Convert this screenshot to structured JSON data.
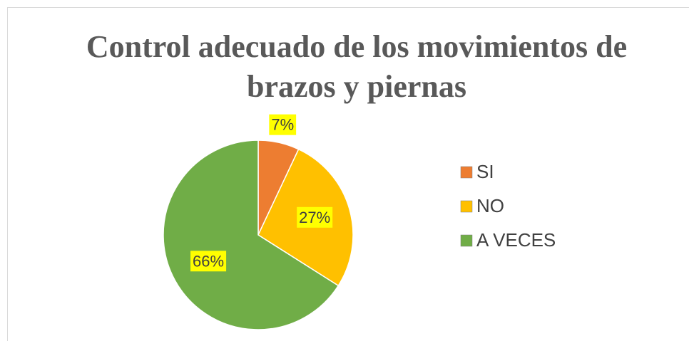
{
  "chart_data": {
    "type": "pie",
    "title": "Control adecuado de los movimientos de brazos y piernas",
    "categories": [
      "SI",
      "NO",
      "A VECES"
    ],
    "values": [
      7,
      27,
      66
    ],
    "value_labels": [
      "7%",
      "27%",
      "66%"
    ],
    "colors": [
      "#ED7D31",
      "#FFC000",
      "#70AD47"
    ],
    "legend": "right"
  }
}
